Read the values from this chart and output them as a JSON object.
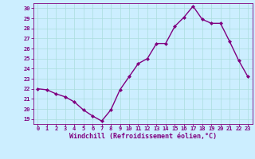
{
  "x": [
    0,
    1,
    2,
    3,
    4,
    5,
    6,
    7,
    8,
    9,
    10,
    11,
    12,
    13,
    14,
    15,
    16,
    17,
    18,
    19,
    20,
    21,
    22,
    23
  ],
  "y": [
    22.0,
    21.9,
    21.5,
    21.2,
    20.7,
    19.9,
    19.3,
    18.8,
    19.9,
    21.9,
    23.2,
    24.5,
    25.0,
    26.5,
    26.5,
    28.2,
    29.1,
    30.2,
    28.9,
    28.5,
    28.5,
    26.7,
    24.8,
    23.2
  ],
  "line_color": "#800080",
  "marker": "D",
  "marker_size": 2.0,
  "bg_color": "#cceeff",
  "grid_color": "#aadddd",
  "xlabel": "Windchill (Refroidissement éolien,°C)",
  "ylim": [
    18.5,
    30.5
  ],
  "xlim": [
    -0.5,
    23.5
  ],
  "yticks": [
    19,
    20,
    21,
    22,
    23,
    24,
    25,
    26,
    27,
    28,
    29,
    30
  ],
  "xticks": [
    0,
    1,
    2,
    3,
    4,
    5,
    6,
    7,
    8,
    9,
    10,
    11,
    12,
    13,
    14,
    15,
    16,
    17,
    18,
    19,
    20,
    21,
    22,
    23
  ],
  "tick_color": "#800080",
  "tick_labelsize": 5.0,
  "xlabel_fontsize": 6.0,
  "line_width": 1.0
}
